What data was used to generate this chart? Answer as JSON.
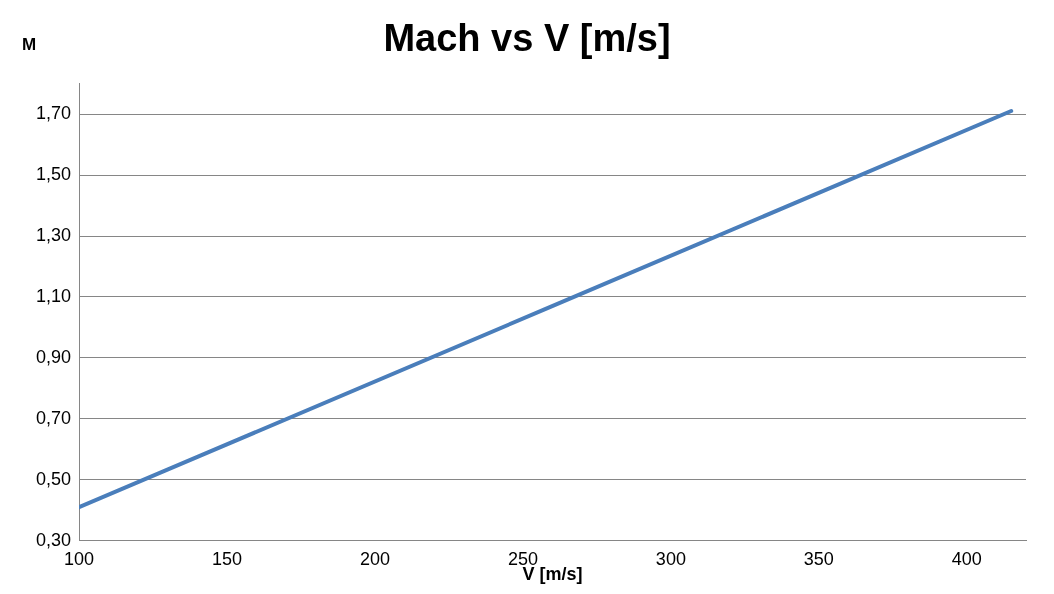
{
  "chart_data": {
    "type": "line",
    "title": "Mach vs V [m/s]",
    "xlabel": "V [m/s]",
    "ylabel": "M",
    "x": [
      100,
      257.5,
      415
    ],
    "series": [
      {
        "color": "#4a7ebb",
        "values": [
          0.41,
          1.06,
          1.71
        ]
      }
    ],
    "xlim": [
      100,
      420
    ],
    "xticks": [
      100,
      150,
      200,
      250,
      300,
      350,
      400
    ],
    "ylim": [
      0.3,
      1.8
    ],
    "yticks": [
      {
        "value": 0.3,
        "label": "0,30"
      },
      {
        "value": 0.5,
        "label": "0,50"
      },
      {
        "value": 0.7,
        "label": "0,70"
      },
      {
        "value": 0.9,
        "label": "0,90"
      },
      {
        "value": 1.1,
        "label": "1,10"
      },
      {
        "value": 1.3,
        "label": "1,30"
      },
      {
        "value": 1.5,
        "label": "1,50"
      },
      {
        "value": 1.7,
        "label": "1,70"
      }
    ],
    "grid": "y",
    "legend": false,
    "marker": "none",
    "line_style": "solid"
  }
}
